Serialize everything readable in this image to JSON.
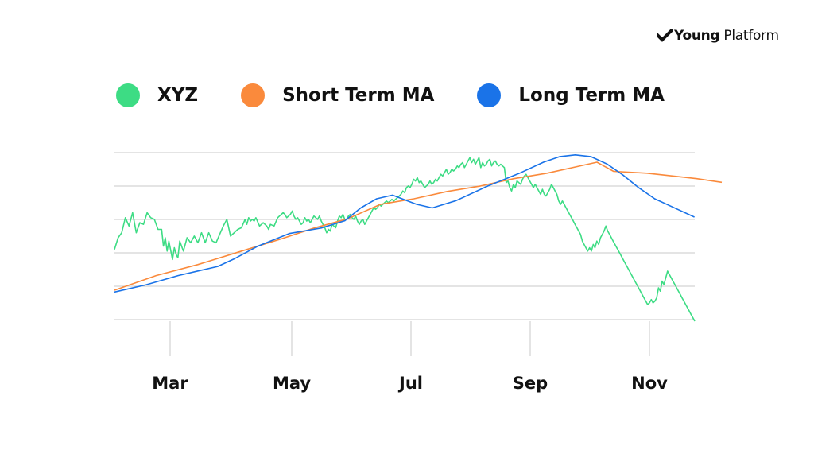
{
  "brand": {
    "name_bold": "Young",
    "name_regular": " Platform",
    "icon": "check-mark-icon"
  },
  "chart_data": {
    "type": "line",
    "title": "",
    "xlabel": "",
    "ylabel": "",
    "x_ticks": [
      "Mar",
      "May",
      "Jul",
      "Sep",
      "Nov"
    ],
    "grid": true,
    "legend_placement": "top-left",
    "series": [
      {
        "name": "XYZ",
        "color": "#3ddc84",
        "points": [
          [
            0,
            43
          ],
          [
            2,
            50
          ],
          [
            4,
            53
          ],
          [
            6,
            62
          ],
          [
            8,
            57
          ],
          [
            10,
            65
          ],
          [
            12,
            53
          ],
          [
            14,
            59
          ],
          [
            16,
            58
          ],
          [
            18,
            65
          ],
          [
            20,
            62
          ],
          [
            22,
            61
          ],
          [
            24,
            55
          ],
          [
            26,
            55
          ],
          [
            27,
            45
          ],
          [
            28,
            50
          ],
          [
            29,
            42
          ],
          [
            30,
            48
          ],
          [
            32,
            37
          ],
          [
            33,
            44
          ],
          [
            34,
            40
          ],
          [
            35,
            38
          ],
          [
            36,
            48
          ],
          [
            37,
            45
          ],
          [
            38,
            42
          ],
          [
            40,
            50
          ],
          [
            42,
            47
          ],
          [
            44,
            51
          ],
          [
            46,
            47
          ],
          [
            48,
            53
          ],
          [
            50,
            47
          ],
          [
            52,
            53
          ],
          [
            54,
            48
          ],
          [
            56,
            47
          ],
          [
            58,
            52
          ],
          [
            60,
            57
          ],
          [
            62,
            61
          ],
          [
            63,
            56
          ],
          [
            64,
            51
          ],
          [
            66,
            53
          ],
          [
            68,
            55
          ],
          [
            70,
            56
          ],
          [
            72,
            61
          ],
          [
            73,
            58
          ],
          [
            74,
            62
          ],
          [
            75,
            60
          ],
          [
            76,
            61
          ],
          [
            77,
            60
          ],
          [
            78,
            62
          ],
          [
            80,
            57
          ],
          [
            82,
            59
          ],
          [
            84,
            57
          ],
          [
            85,
            55
          ],
          [
            86,
            58
          ],
          [
            88,
            57
          ],
          [
            90,
            62
          ],
          [
            91,
            63
          ],
          [
            92,
            64
          ],
          [
            93,
            65
          ],
          [
            94,
            64
          ],
          [
            95,
            62
          ],
          [
            96,
            63
          ],
          [
            97,
            64
          ],
          [
            98,
            66
          ],
          [
            99,
            63
          ],
          [
            100,
            61
          ],
          [
            101,
            62
          ],
          [
            102,
            60
          ],
          [
            103,
            58
          ],
          [
            104,
            59
          ],
          [
            105,
            62
          ],
          [
            106,
            60
          ],
          [
            107,
            61
          ],
          [
            108,
            59
          ],
          [
            109,
            61
          ],
          [
            110,
            63
          ],
          [
            111,
            62
          ],
          [
            112,
            61
          ],
          [
            113,
            63
          ],
          [
            114,
            60
          ],
          [
            115,
            58
          ],
          [
            116,
            56
          ],
          [
            117,
            53
          ],
          [
            118,
            55
          ],
          [
            119,
            54
          ],
          [
            120,
            58
          ],
          [
            121,
            57
          ],
          [
            122,
            56
          ],
          [
            123,
            60
          ],
          [
            124,
            63
          ],
          [
            125,
            62
          ],
          [
            126,
            64
          ],
          [
            127,
            61
          ],
          [
            128,
            61
          ],
          [
            129,
            63
          ],
          [
            130,
            64
          ],
          [
            131,
            62
          ],
          [
            132,
            61
          ],
          [
            133,
            63
          ],
          [
            134,
            60
          ],
          [
            135,
            58
          ],
          [
            136,
            60
          ],
          [
            137,
            61
          ],
          [
            138,
            58
          ],
          [
            139,
            60
          ],
          [
            140,
            62
          ],
          [
            141,
            64
          ],
          [
            142,
            66
          ],
          [
            143,
            68
          ],
          [
            144,
            67
          ],
          [
            145,
            68
          ],
          [
            146,
            70
          ],
          [
            147,
            69
          ],
          [
            148,
            70
          ],
          [
            149,
            71
          ],
          [
            150,
            72
          ],
          [
            151,
            71
          ],
          [
            152,
            72
          ],
          [
            153,
            73
          ],
          [
            154,
            72
          ],
          [
            155,
            73
          ],
          [
            156,
            74
          ],
          [
            157,
            75
          ],
          [
            158,
            76
          ],
          [
            159,
            78
          ],
          [
            160,
            77
          ],
          [
            161,
            80
          ],
          [
            162,
            81
          ],
          [
            163,
            80
          ],
          [
            164,
            82
          ],
          [
            165,
            85
          ],
          [
            166,
            84
          ],
          [
            167,
            86
          ],
          [
            168,
            83
          ],
          [
            169,
            84
          ],
          [
            170,
            82
          ],
          [
            171,
            80
          ],
          [
            172,
            81
          ],
          [
            173,
            82
          ],
          [
            174,
            84
          ],
          [
            175,
            82
          ],
          [
            176,
            83
          ],
          [
            177,
            85
          ],
          [
            178,
            84
          ],
          [
            179,
            86
          ],
          [
            180,
            88
          ],
          [
            181,
            87
          ],
          [
            182,
            89
          ],
          [
            183,
            91
          ],
          [
            184,
            88
          ],
          [
            185,
            89
          ],
          [
            186,
            91
          ],
          [
            187,
            90
          ],
          [
            188,
            91
          ],
          [
            189,
            93
          ],
          [
            190,
            92
          ],
          [
            191,
            94
          ],
          [
            192,
            95
          ],
          [
            193,
            92
          ],
          [
            194,
            94
          ],
          [
            195,
            96
          ],
          [
            196,
            98
          ],
          [
            197,
            95
          ],
          [
            198,
            97
          ],
          [
            199,
            94
          ],
          [
            200,
            96
          ],
          [
            201,
            98
          ],
          [
            202,
            92
          ],
          [
            203,
            95
          ],
          [
            204,
            93
          ],
          [
            205,
            94
          ],
          [
            206,
            96
          ],
          [
            207,
            97
          ],
          [
            208,
            93
          ],
          [
            209,
            95
          ],
          [
            210,
            96
          ],
          [
            211,
            94
          ],
          [
            212,
            93
          ],
          [
            213,
            94
          ],
          [
            214,
            93
          ],
          [
            215,
            92
          ],
          [
            216,
            83
          ],
          [
            217,
            84
          ],
          [
            218,
            80
          ],
          [
            219,
            78
          ],
          [
            220,
            82
          ],
          [
            221,
            80
          ],
          [
            222,
            84
          ],
          [
            223,
            83
          ],
          [
            224,
            82
          ],
          [
            225,
            85
          ],
          [
            226,
            87
          ],
          [
            227,
            88
          ],
          [
            228,
            86
          ],
          [
            229,
            84
          ],
          [
            230,
            82
          ],
          [
            231,
            80
          ],
          [
            232,
            82
          ],
          [
            233,
            80
          ],
          [
            234,
            78
          ],
          [
            235,
            76
          ],
          [
            236,
            79
          ],
          [
            237,
            76
          ],
          [
            238,
            75
          ],
          [
            239,
            77
          ],
          [
            240,
            79
          ],
          [
            241,
            82
          ],
          [
            242,
            80
          ],
          [
            243,
            78
          ],
          [
            244,
            76
          ],
          [
            245,
            72
          ],
          [
            246,
            70
          ],
          [
            247,
            72
          ],
          [
            248,
            70
          ],
          [
            249,
            68
          ],
          [
            250,
            66
          ],
          [
            251,
            64
          ],
          [
            252,
            62
          ],
          [
            253,
            60
          ],
          [
            254,
            58
          ],
          [
            255,
            56
          ],
          [
            256,
            54
          ],
          [
            257,
            52
          ],
          [
            258,
            48
          ],
          [
            259,
            46
          ],
          [
            260,
            44
          ],
          [
            261,
            42
          ],
          [
            262,
            44
          ],
          [
            263,
            42
          ],
          [
            264,
            46
          ],
          [
            265,
            44
          ],
          [
            266,
            48
          ],
          [
            267,
            46
          ],
          [
            268,
            50
          ],
          [
            269,
            52
          ],
          [
            270,
            54
          ],
          [
            271,
            57
          ],
          [
            272,
            54
          ],
          [
            273,
            52
          ],
          [
            274,
            50
          ],
          [
            275,
            48
          ],
          [
            276,
            46
          ],
          [
            277,
            44
          ],
          [
            278,
            42
          ],
          [
            279,
            40
          ],
          [
            280,
            38
          ],
          [
            281,
            36
          ],
          [
            282,
            34
          ],
          [
            283,
            32
          ],
          [
            284,
            30
          ],
          [
            285,
            28
          ],
          [
            286,
            26
          ],
          [
            287,
            24
          ],
          [
            288,
            22
          ],
          [
            289,
            20
          ],
          [
            290,
            18
          ],
          [
            291,
            16
          ],
          [
            292,
            14
          ],
          [
            293,
            12
          ],
          [
            294,
            10
          ],
          [
            295,
            11
          ],
          [
            296,
            13
          ],
          [
            297,
            11
          ],
          [
            298,
            12
          ],
          [
            299,
            14
          ],
          [
            300,
            20
          ],
          [
            301,
            18
          ],
          [
            302,
            24
          ],
          [
            303,
            22
          ],
          [
            304,
            26
          ],
          [
            305,
            30
          ],
          [
            306,
            28
          ],
          [
            307,
            26
          ],
          [
            308,
            24
          ],
          [
            309,
            22
          ],
          [
            310,
            20
          ],
          [
            311,
            18
          ],
          [
            312,
            16
          ],
          [
            313,
            14
          ],
          [
            314,
            12
          ],
          [
            315,
            10
          ],
          [
            316,
            8
          ],
          [
            317,
            6
          ],
          [
            318,
            4
          ],
          [
            319,
            2
          ],
          [
            320,
            0
          ]
        ]
      },
      {
        "name": "Short Term MA",
        "color": "#fa8a3c",
        "points": [
          [
            0,
            30
          ],
          [
            50,
            38
          ],
          [
            100,
            44
          ],
          [
            150,
            51
          ],
          [
            200,
            58
          ],
          [
            240,
            64
          ],
          [
            280,
            69
          ],
          [
            320,
            77
          ],
          [
            360,
            80
          ],
          [
            400,
            84
          ],
          [
            440,
            87
          ],
          [
            480,
            91
          ],
          [
            520,
            94
          ],
          [
            560,
            98
          ],
          [
            580,
            100
          ],
          [
            600,
            95
          ],
          [
            640,
            94
          ],
          [
            660,
            93
          ],
          [
            700,
            91
          ],
          [
            730,
            89
          ]
        ]
      },
      {
        "name": "Long Term MA",
        "color": "#1a73e8",
        "points": [
          [
            0,
            29
          ],
          [
            40,
            33
          ],
          [
            80,
            38
          ],
          [
            110,
            41
          ],
          [
            130,
            43
          ],
          [
            150,
            47
          ],
          [
            180,
            54
          ],
          [
            220,
            61
          ],
          [
            260,
            64
          ],
          [
            290,
            68
          ],
          [
            310,
            75
          ],
          [
            330,
            80
          ],
          [
            350,
            82
          ],
          [
            380,
            77
          ],
          [
            400,
            75
          ],
          [
            430,
            79
          ],
          [
            470,
            87
          ],
          [
            510,
            94
          ],
          [
            540,
            100
          ],
          [
            560,
            103
          ],
          [
            580,
            104
          ],
          [
            600,
            103
          ],
          [
            620,
            99
          ],
          [
            640,
            93
          ],
          [
            660,
            86
          ],
          [
            680,
            80
          ],
          [
            700,
            76
          ],
          [
            730,
            70
          ]
        ]
      }
    ]
  }
}
